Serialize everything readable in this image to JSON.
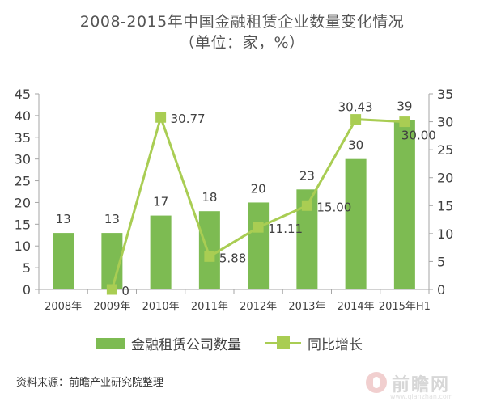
{
  "title_line1": "2008-2015年中国金融租赁企业数量变化情况",
  "title_line2": "（单位：家，%）",
  "source": "资料来源：前瞻产业研究院整理",
  "watermark": {
    "text": "前瞻网",
    "url": "www.qianzhan.com"
  },
  "colors": {
    "bar": "#7dbb52",
    "line": "#a9cd53",
    "axis": "#a6a6a6",
    "text": "#404040"
  },
  "chart_data": {
    "type": "bar",
    "categories": [
      "2008年",
      "2009年",
      "2010年",
      "2011年",
      "2012年",
      "2013年",
      "2014年",
      "2015年H1"
    ],
    "series": [
      {
        "name": "金融租赁公司数量",
        "type": "bar",
        "axis": "left",
        "values": [
          13,
          13,
          17,
          18,
          20,
          23,
          30,
          39
        ],
        "labels": [
          "13",
          "13",
          "17",
          "18",
          "20",
          "23",
          "30",
          "39"
        ]
      },
      {
        "name": "同比增长",
        "type": "line",
        "axis": "right",
        "values": [
          null,
          0,
          30.77,
          5.88,
          11.11,
          15.0,
          30.43,
          30.0
        ],
        "labels": [
          "",
          "0",
          "30.77",
          "5.88",
          "11.11",
          "15.00",
          "30.43",
          "30.00"
        ]
      }
    ],
    "ylim_left": [
      0,
      45
    ],
    "yticks_left": [
      "0",
      "5",
      "10",
      "15",
      "20",
      "25",
      "30",
      "35",
      "40",
      "45"
    ],
    "ylim_right": [
      0,
      35
    ],
    "yticks_right": [
      "0",
      "5",
      "10",
      "15",
      "20",
      "25",
      "30",
      "35"
    ],
    "grid": false,
    "legend": "bottom"
  }
}
